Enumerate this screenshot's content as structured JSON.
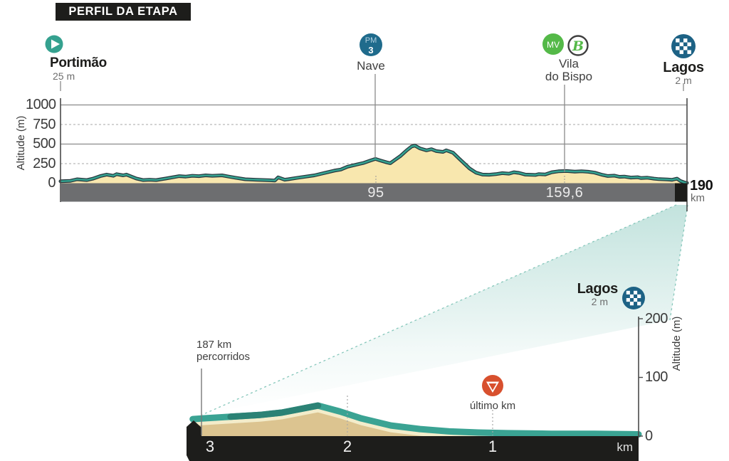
{
  "title_badge": "PERFIL DA ETAPA",
  "colors": {
    "teal": "#35a18f",
    "teal_road": "#3aa393",
    "teal_road_dark": "#2b8275",
    "cream": "#f8e7ae",
    "outline": "#26333a",
    "gray_bar": "#6d6e70",
    "black": "#1d1d1b",
    "pm_blue": "#1f6b8c",
    "finish_blue": "#1d6285",
    "mv_green": "#54b948",
    "last_km_red": "#d8502e",
    "ground_tan": "#dcc490",
    "road_edge": "#f3ecca",
    "beam_teal": "#86c7bb"
  },
  "main_chart": {
    "y_axis_label": "Altitude (m)",
    "y_ticks": [
      "1000",
      "750",
      "500",
      "250",
      "0"
    ],
    "bar_labels": [
      "95",
      "159,6"
    ],
    "end_distance": "190",
    "end_unit": "km",
    "pm_text": "PM",
    "pm_num": "3",
    "mv_text": "MV",
    "b_text": "B",
    "waypoints": [
      {
        "name": "Portimão",
        "sub": "25 m"
      },
      {
        "name": "Nave"
      },
      {
        "name": "Vila",
        "name2": "do Bispo"
      },
      {
        "name": "Lagos",
        "sub": "2 m"
      }
    ]
  },
  "zoom_chart": {
    "annotation": "187 km",
    "annotation2": "percorridos",
    "last_km": "último km",
    "finish_name": "Lagos",
    "finish_sub": "2 m",
    "y_axis_label": "Altitude (m)",
    "y_ticks": [
      "200",
      "100",
      "0"
    ],
    "x_ticks": [
      "3",
      "2",
      "1"
    ],
    "x_unit": "km"
  },
  "chart_data": [
    {
      "type": "area",
      "title": "Perfil da etapa Portimão - Lagos",
      "xlabel": "km",
      "ylabel": "Altitude (m)",
      "xlim": [
        0,
        190
      ],
      "ylim": [
        0,
        1000
      ],
      "y_ticks": [
        0,
        250,
        500,
        750,
        1000
      ],
      "x_marks_km": [
        95,
        159.6,
        190
      ],
      "waypoints": [
        {
          "name": "Portimão",
          "km": 0,
          "altitude_m": 25,
          "icon": "start"
        },
        {
          "name": "Nave",
          "km": 95,
          "altitude_m": 310,
          "icon": "PM3"
        },
        {
          "name": "Vila do Bispo",
          "km": 159.6,
          "altitude_m": 150,
          "icon": "MV+B"
        },
        {
          "name": "Lagos",
          "km": 190,
          "altitude_m": 2,
          "icon": "finish"
        }
      ],
      "profile_km_m": [
        [
          0,
          25
        ],
        [
          3,
          30
        ],
        [
          5,
          50
        ],
        [
          8,
          40
        ],
        [
          10,
          60
        ],
        [
          12,
          90
        ],
        [
          14,
          110
        ],
        [
          16,
          95
        ],
        [
          17,
          115
        ],
        [
          19,
          100
        ],
        [
          20,
          110
        ],
        [
          23,
          60
        ],
        [
          25,
          40
        ],
        [
          27,
          45
        ],
        [
          29,
          40
        ],
        [
          32,
          60
        ],
        [
          36,
          90
        ],
        [
          38,
          85
        ],
        [
          40,
          95
        ],
        [
          42,
          90
        ],
        [
          44,
          100
        ],
        [
          46,
          95
        ],
        [
          49,
          100
        ],
        [
          51,
          85
        ],
        [
          53,
          70
        ],
        [
          56,
          50
        ],
        [
          59,
          45
        ],
        [
          62,
          40
        ],
        [
          65,
          35
        ],
        [
          66,
          75
        ],
        [
          68,
          45
        ],
        [
          69,
          50
        ],
        [
          72,
          70
        ],
        [
          77,
          100
        ],
        [
          80,
          130
        ],
        [
          83,
          160
        ],
        [
          85,
          175
        ],
        [
          87,
          210
        ],
        [
          90,
          240
        ],
        [
          92,
          260
        ],
        [
          94,
          290
        ],
        [
          95.5,
          310
        ],
        [
          97,
          290
        ],
        [
          99,
          265
        ],
        [
          100,
          255
        ],
        [
          101.5,
          300
        ],
        [
          103,
          345
        ],
        [
          105,
          420
        ],
        [
          106.5,
          470
        ],
        [
          107.5,
          480
        ],
        [
          109,
          445
        ],
        [
          111,
          420
        ],
        [
          112.5,
          435
        ],
        [
          114,
          410
        ],
        [
          116,
          400
        ],
        [
          117,
          420
        ],
        [
          119,
          390
        ],
        [
          121,
          310
        ],
        [
          122.5,
          250
        ],
        [
          124,
          190
        ],
        [
          126,
          135
        ],
        [
          128,
          110
        ],
        [
          130,
          108
        ],
        [
          132,
          115
        ],
        [
          134,
          128
        ],
        [
          136,
          122
        ],
        [
          137.5,
          140
        ],
        [
          139,
          132
        ],
        [
          141,
          110
        ],
        [
          144,
          105
        ],
        [
          145,
          115
        ],
        [
          147,
          112
        ],
        [
          149,
          140
        ],
        [
          151,
          152
        ],
        [
          153.5,
          155
        ],
        [
          156,
          148
        ],
        [
          158,
          152
        ],
        [
          160,
          146
        ],
        [
          162,
          135
        ],
        [
          164,
          110
        ],
        [
          166,
          92
        ],
        [
          168,
          96
        ],
        [
          169.5,
          82
        ],
        [
          171,
          85
        ],
        [
          173,
          72
        ],
        [
          175,
          76
        ],
        [
          176,
          66
        ],
        [
          178,
          70
        ],
        [
          180,
          58
        ],
        [
          181.5,
          52
        ],
        [
          184,
          48
        ],
        [
          185.5,
          44
        ],
        [
          187,
          58
        ],
        [
          188,
          28
        ],
        [
          189.3,
          8
        ],
        [
          190,
          3
        ]
      ]
    },
    {
      "type": "area",
      "title": "Últimos 3 km (zoom final)",
      "xlabel": "km to go",
      "ylabel": "Altitude (m)",
      "xlim": [
        3,
        0
      ],
      "ylim": [
        0,
        200
      ],
      "y_ticks": [
        0,
        100,
        200
      ],
      "x_ticks": [
        3,
        2,
        1
      ],
      "annotations": [
        {
          "text": "187 km percorridos",
          "km_to_go": 3
        },
        {
          "text": "último km",
          "km_to_go": 1
        },
        {
          "text": "Lagos 2 m",
          "km_to_go": 0
        }
      ],
      "profile_kmtogo_m": [
        [
          3.06,
          29
        ],
        [
          3,
          30
        ],
        [
          2.8,
          33
        ],
        [
          2.6,
          36
        ],
        [
          2.45,
          40
        ],
        [
          2.2,
          52
        ],
        [
          2.05,
          42
        ],
        [
          1.9,
          30
        ],
        [
          1.7,
          18
        ],
        [
          1.5,
          12
        ],
        [
          1.3,
          8
        ],
        [
          1.1,
          6
        ],
        [
          0.9,
          5
        ],
        [
          0.6,
          4
        ],
        [
          0.3,
          4
        ],
        [
          0,
          3
        ]
      ]
    }
  ]
}
